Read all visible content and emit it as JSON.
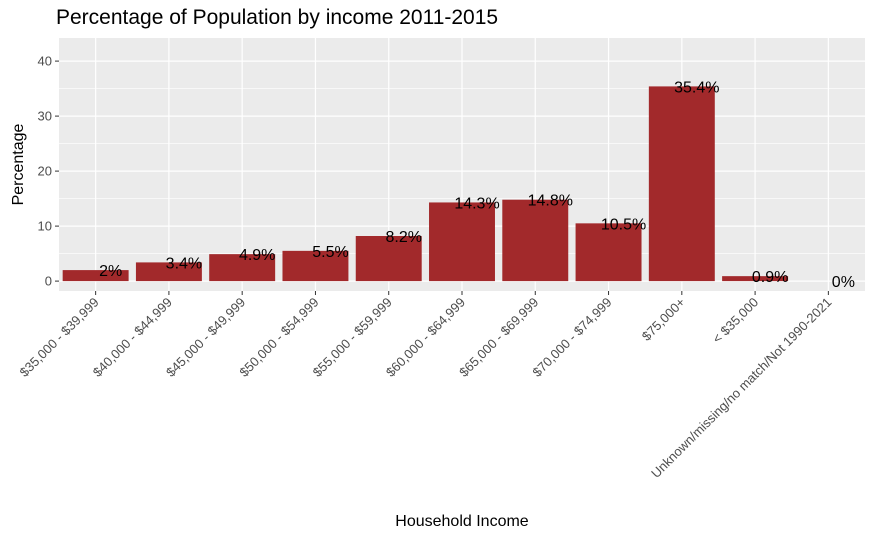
{
  "chart_data": {
    "type": "bar",
    "title": "Percentage of Population by income 2011-2015",
    "xlabel": "Household Income",
    "ylabel": "Percentage",
    "categories": [
      "$35,000 - $39,999",
      "$40,000 - $44,999",
      "$45,000 - $49,999",
      "$50,000 - $54,999",
      "$55,000 - $59,999",
      "$60,000 - $64,999",
      "$65,000 - $69,999",
      "$70,000 - $74,999",
      "$75,000+",
      "< $35,000",
      "Unknown/missing/no match/Not 1990-2021"
    ],
    "values": [
      2,
      3.4,
      4.9,
      5.5,
      8.2,
      14.3,
      14.8,
      10.5,
      35.4,
      0.9,
      0
    ],
    "data_labels": [
      "2%",
      "3.4%",
      "4.9%",
      "5.5%",
      "8.2%",
      "14.3%",
      "14.8%",
      "10.5%",
      "35.4%",
      "0.9%",
      "0%"
    ],
    "yticks": [
      0,
      10,
      20,
      30,
      40
    ],
    "ylim": [
      -1.8,
      44.2
    ],
    "grid": true,
    "legend": "none",
    "colors": {
      "bar": "#a2292b",
      "panel": "#ebebeb",
      "grid": "#ffffff"
    }
  }
}
